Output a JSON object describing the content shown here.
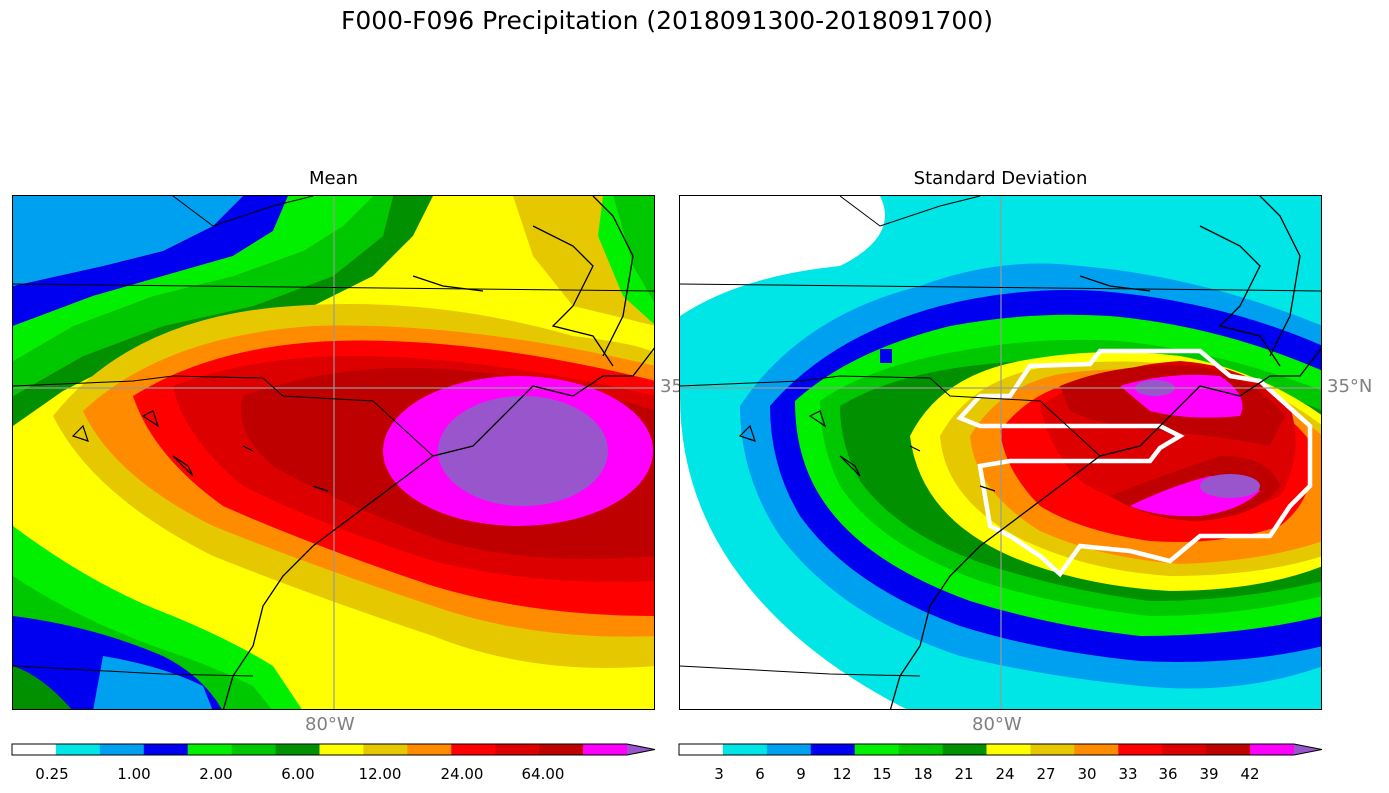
{
  "title": "F000-F096 Precipitation (2018091300-2018091700)",
  "panels": [
    {
      "title": "Mean",
      "lon_label": "80°W",
      "lat_label": "35",
      "colorbar": {
        "colors": [
          "#ffffff",
          "#00e5e5",
          "#00a0f0",
          "#0000f0",
          "#00f000",
          "#00c800",
          "#009000",
          "#ffff00",
          "#e6c800",
          "#ff8c00",
          "#ff0000",
          "#dc0000",
          "#be0000",
          "#ff00ff",
          "#9955cc"
        ],
        "tick_labels": [
          "0.25",
          "1.00",
          "2.00",
          "6.00",
          "12.00",
          "24.00",
          "64.00"
        ]
      }
    },
    {
      "title": "Standard Deviation",
      "lon_label": "80°W",
      "lat_label": "35°N",
      "colorbar": {
        "colors": [
          "#ffffff",
          "#00e5e5",
          "#00a0f0",
          "#0000f0",
          "#00f000",
          "#00c800",
          "#009000",
          "#ffff00",
          "#e6c800",
          "#ff8c00",
          "#ff0000",
          "#dc0000",
          "#be0000",
          "#ff00ff",
          "#9955cc"
        ],
        "tick_labels": [
          "3",
          "6",
          "9",
          "12",
          "15",
          "18",
          "21",
          "24",
          "27",
          "30",
          "33",
          "36",
          "39",
          "42"
        ]
      }
    }
  ]
}
